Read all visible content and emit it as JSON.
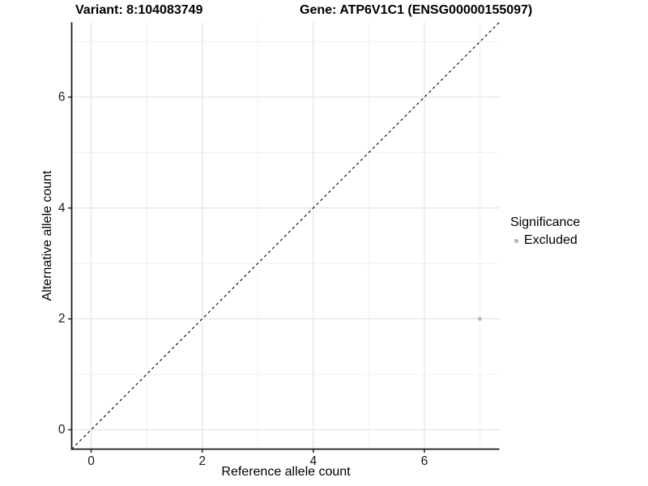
{
  "chart_data": {
    "type": "scatter",
    "title_left": "Variant: 8:104083749",
    "title_right": "Gene: ATP6V1C1 (ENSG00000155097)",
    "xlabel": "Reference allele count",
    "ylabel": "Alternative allele count",
    "xlim": [
      -0.35,
      7.35
    ],
    "ylim": [
      -0.35,
      7.35
    ],
    "x_major_ticks": [
      0,
      2,
      4,
      6
    ],
    "y_major_ticks": [
      0,
      2,
      4,
      6
    ],
    "x_minor_gridlines": [
      1,
      3,
      5,
      7
    ],
    "y_minor_gridlines": [
      1,
      3,
      5,
      7
    ],
    "grid": "major+minor",
    "identity_line": {
      "style": "dashed",
      "from": [
        -0.35,
        -0.35
      ],
      "to": [
        7.35,
        7.35
      ],
      "color": "#000000"
    },
    "series": [
      {
        "name": "Excluded",
        "color": "#b4b4b4",
        "points": [
          {
            "x": 7,
            "y": 2
          }
        ]
      }
    ],
    "legend": {
      "title": "Significance",
      "position": "right",
      "entries": [
        {
          "label": "Excluded",
          "color": "#b4b4b4"
        }
      ]
    }
  },
  "colors": {
    "background": "#ffffff",
    "grid_major": "#e3e3e3",
    "grid_minor": "#f1f1f1",
    "axis_line": "#1a1a1a",
    "tick_mark": "#1a1a1a",
    "tick_label": "#1a1a1a",
    "point": "#b4b4b4"
  }
}
